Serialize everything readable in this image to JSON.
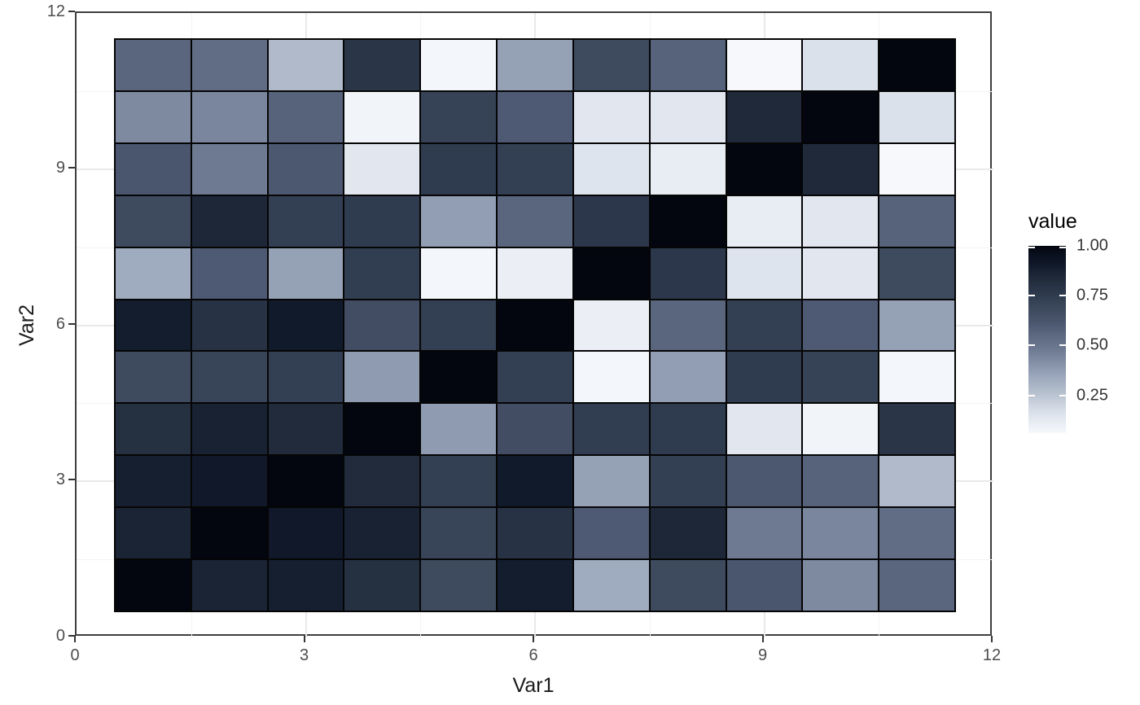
{
  "chart_data": {
    "type": "heatmap",
    "title": "",
    "xlabel": "Var1",
    "ylabel": "Var2",
    "xlim": [
      0,
      12
    ],
    "ylim": [
      0,
      12
    ],
    "x_breaks": [
      0,
      3,
      6,
      9,
      12
    ],
    "x_break_labels": [
      "0",
      "3",
      "6",
      "9",
      "12"
    ],
    "y_breaks": [
      0,
      3,
      6,
      9,
      12
    ],
    "y_break_labels": [
      "0",
      "3",
      "6",
      "9",
      "12"
    ],
    "x_minor_breaks": [
      1.5,
      4.5,
      7.5,
      10.5
    ],
    "y_minor_breaks": [
      1.5,
      4.5,
      7.5,
      10.5
    ],
    "grid": {
      "shown": true,
      "major_color": "#e9e9e9",
      "minor_color": "#f3f3f3"
    },
    "x_categories": [
      1,
      2,
      3,
      4,
      5,
      6,
      7,
      8,
      9,
      10,
      11
    ],
    "y_categories": [
      1,
      2,
      3,
      4,
      5,
      6,
      7,
      8,
      9,
      10,
      11
    ],
    "tile_span": [
      0.5,
      11.5
    ],
    "row_order_note": "rows listed for Var2 = 11 (top) down to 1 (bottom); columns Var1 = 1..11 left to right",
    "y_row_order": [
      11,
      10,
      9,
      8,
      7,
      6,
      5,
      4,
      3,
      2,
      1
    ],
    "values": [
      [
        0.56,
        0.53,
        0.28,
        0.78,
        0.07,
        0.36,
        0.68,
        0.57,
        0.06,
        0.16,
        1.0
      ],
      [
        0.43,
        0.44,
        0.57,
        0.08,
        0.72,
        0.6,
        0.14,
        0.14,
        0.84,
        1.0,
        0.16
      ],
      [
        0.62,
        0.48,
        0.61,
        0.14,
        0.75,
        0.73,
        0.15,
        0.11,
        1.0,
        0.84,
        0.06
      ],
      [
        0.68,
        0.85,
        0.73,
        0.75,
        0.37,
        0.56,
        0.77,
        1.0,
        0.11,
        0.14,
        0.57
      ],
      [
        0.33,
        0.6,
        0.36,
        0.74,
        0.07,
        0.1,
        1.0,
        0.77,
        0.15,
        0.14,
        0.68
      ],
      [
        0.89,
        0.8,
        0.9,
        0.66,
        0.73,
        1.0,
        0.1,
        0.56,
        0.73,
        0.6,
        0.36
      ],
      [
        0.68,
        0.71,
        0.73,
        0.38,
        1.0,
        0.73,
        0.07,
        0.37,
        0.75,
        0.72,
        0.07
      ],
      [
        0.81,
        0.87,
        0.83,
        1.0,
        0.38,
        0.66,
        0.74,
        0.75,
        0.14,
        0.08,
        0.78
      ],
      [
        0.88,
        0.91,
        1.0,
        0.83,
        0.73,
        0.9,
        0.36,
        0.73,
        0.61,
        0.57,
        0.28
      ],
      [
        0.86,
        1.0,
        0.91,
        0.87,
        0.71,
        0.8,
        0.6,
        0.85,
        0.48,
        0.44,
        0.53
      ],
      [
        1.0,
        0.86,
        0.88,
        0.81,
        0.68,
        0.89,
        0.33,
        0.68,
        0.62,
        0.43,
        0.56
      ]
    ],
    "legend": {
      "title": "value",
      "position": "right",
      "domain": [
        0.06,
        1.0
      ],
      "breaks": [
        1.0,
        0.75,
        0.5,
        0.25
      ],
      "labels": [
        "1.00",
        "0.75",
        "0.50",
        "0.25"
      ]
    },
    "palette": {
      "low_color": "#f6f8fb",
      "high_color": "#03060f",
      "stops": [
        [
          0.06,
          "#f6f8fb"
        ],
        [
          0.1,
          "#ebeff5"
        ],
        [
          0.15,
          "#dee4ed"
        ],
        [
          0.2,
          "#cdd5e0"
        ],
        [
          0.25,
          "#bac4d2"
        ],
        [
          0.3,
          "#a9b4c6"
        ],
        [
          0.35,
          "#99a5b9"
        ],
        [
          0.4,
          "#8794aa"
        ],
        [
          0.45,
          "#76839a"
        ],
        [
          0.5,
          "#67748c"
        ],
        [
          0.55,
          "#5c6980"
        ],
        [
          0.6,
          "#4e5a73"
        ],
        [
          0.65,
          "#444f65"
        ],
        [
          0.7,
          "#3a4659"
        ],
        [
          0.75,
          "#2f3b4f"
        ],
        [
          0.8,
          "#273244"
        ],
        [
          0.85,
          "#1d2737"
        ],
        [
          0.9,
          "#111a2b"
        ],
        [
          0.95,
          "#0a101f"
        ],
        [
          1.0,
          "#03060f"
        ]
      ]
    },
    "tile_border_color": "#050505",
    "panel_border_color": "#3f3f3f",
    "axis_text_color": "#4d4d4d",
    "axis_title_color": "#1a1a1a"
  }
}
